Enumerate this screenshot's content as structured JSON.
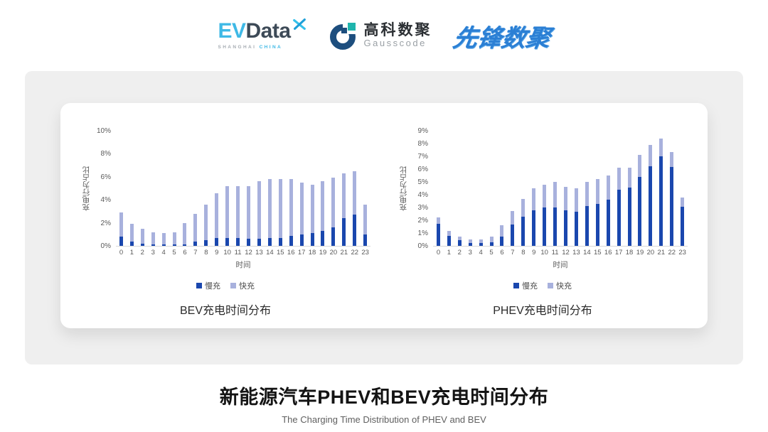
{
  "header": {
    "evdata_logo": {
      "ev": "EV",
      "data": "Data",
      "sub_left": "SHANGHAI",
      "sub_right": "CHINA"
    },
    "gausscode_logo": {
      "cn": "高科数聚",
      "en": "Gausscode"
    },
    "xianfeng_logo": {
      "text": "先锋数聚"
    }
  },
  "colors": {
    "slow": "#1a47ae",
    "fast": "#a8b1dd",
    "axis_text": "#595959",
    "baseline": "#d8d8d8"
  },
  "chart_data": [
    {
      "type": "bar",
      "stacked": true,
      "title": "BEV充电时间分布",
      "xlabel": "时间",
      "ylabel": "充电行为占比",
      "ymax": 10,
      "ystep": 2,
      "grid": false,
      "legend_position": "bottom",
      "categories": [
        "0",
        "1",
        "2",
        "3",
        "4",
        "5",
        "6",
        "7",
        "8",
        "9",
        "10",
        "11",
        "12",
        "13",
        "14",
        "15",
        "16",
        "17",
        "18",
        "19",
        "20",
        "21",
        "22",
        "23"
      ],
      "series": [
        {
          "name": "慢充",
          "color_key": "slow",
          "values": [
            0.8,
            0.35,
            0.2,
            0.1,
            0.1,
            0.1,
            0.15,
            0.35,
            0.5,
            0.7,
            0.65,
            0.7,
            0.6,
            0.6,
            0.65,
            0.7,
            0.85,
            1.0,
            1.1,
            1.3,
            1.6,
            2.4,
            2.7,
            1.0
          ]
        },
        {
          "name": "快充",
          "color_key": "fast",
          "values": [
            2.1,
            1.55,
            1.3,
            1.1,
            1.0,
            1.1,
            1.85,
            2.45,
            3.1,
            3.9,
            4.55,
            4.5,
            4.6,
            5.0,
            5.15,
            5.1,
            4.95,
            4.5,
            4.2,
            4.3,
            4.3,
            3.9,
            3.8,
            2.6
          ]
        }
      ]
    },
    {
      "type": "bar",
      "stacked": true,
      "title": "PHEV充电时间分布",
      "xlabel": "时间",
      "ylabel": "充电行为占比",
      "ymax": 9,
      "ystep": 1,
      "grid": false,
      "legend_position": "bottom",
      "categories": [
        "0",
        "1",
        "2",
        "3",
        "4",
        "5",
        "6",
        "7",
        "8",
        "9",
        "10",
        "11",
        "12",
        "13",
        "14",
        "15",
        "16",
        "17",
        "18",
        "19",
        "20",
        "21",
        "22",
        "23"
      ],
      "series": [
        {
          "name": "慢充",
          "color_key": "slow",
          "values": [
            1.75,
            0.8,
            0.45,
            0.25,
            0.25,
            0.3,
            0.75,
            1.65,
            2.3,
            2.8,
            3.0,
            3.0,
            2.8,
            2.65,
            3.1,
            3.3,
            3.6,
            4.4,
            4.55,
            5.4,
            6.2,
            7.0,
            6.15,
            3.05
          ]
        },
        {
          "name": "快充",
          "color_key": "fast",
          "values": [
            0.45,
            0.35,
            0.3,
            0.25,
            0.25,
            0.4,
            0.85,
            1.05,
            1.35,
            1.7,
            1.8,
            2.0,
            1.8,
            1.85,
            1.9,
            1.95,
            1.9,
            1.7,
            1.55,
            1.7,
            1.7,
            1.4,
            1.2,
            0.75
          ]
        }
      ]
    }
  ],
  "footer": {
    "title": "新能源汽车PHEV和BEV充电时间分布",
    "subtitle": "The Charging Time Distribution of PHEV and BEV"
  }
}
